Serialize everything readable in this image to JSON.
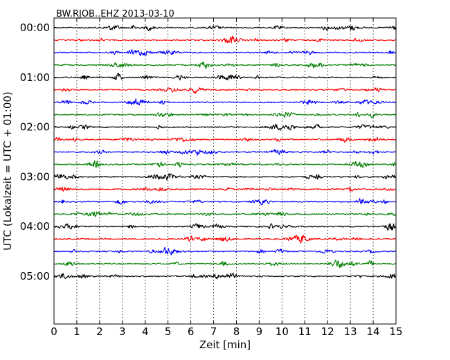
{
  "chart_data": {
    "type": "line",
    "title": "BW.RJOB..EHZ 2013-03-10",
    "xlabel": "Zeit  [min]",
    "ylabel": "UTC (Lokalzeit = UTC + 01:00)",
    "xlim": [
      0,
      15
    ],
    "x_ticks": [
      "0",
      "1",
      "2",
      "3",
      "4",
      "5",
      "6",
      "7",
      "8",
      "9",
      "10",
      "11",
      "12",
      "13",
      "14",
      "15"
    ],
    "y_tick_labels": [
      "00:00",
      "01:00",
      "02:00",
      "03:00",
      "04:00",
      "05:00"
    ],
    "traces_per_hour": 4,
    "trace_count": 21,
    "trace_colors": [
      "#000000",
      "#ff0000",
      "#0000ff",
      "#007f00"
    ],
    "grid": "vertical dotted at each minute"
  }
}
